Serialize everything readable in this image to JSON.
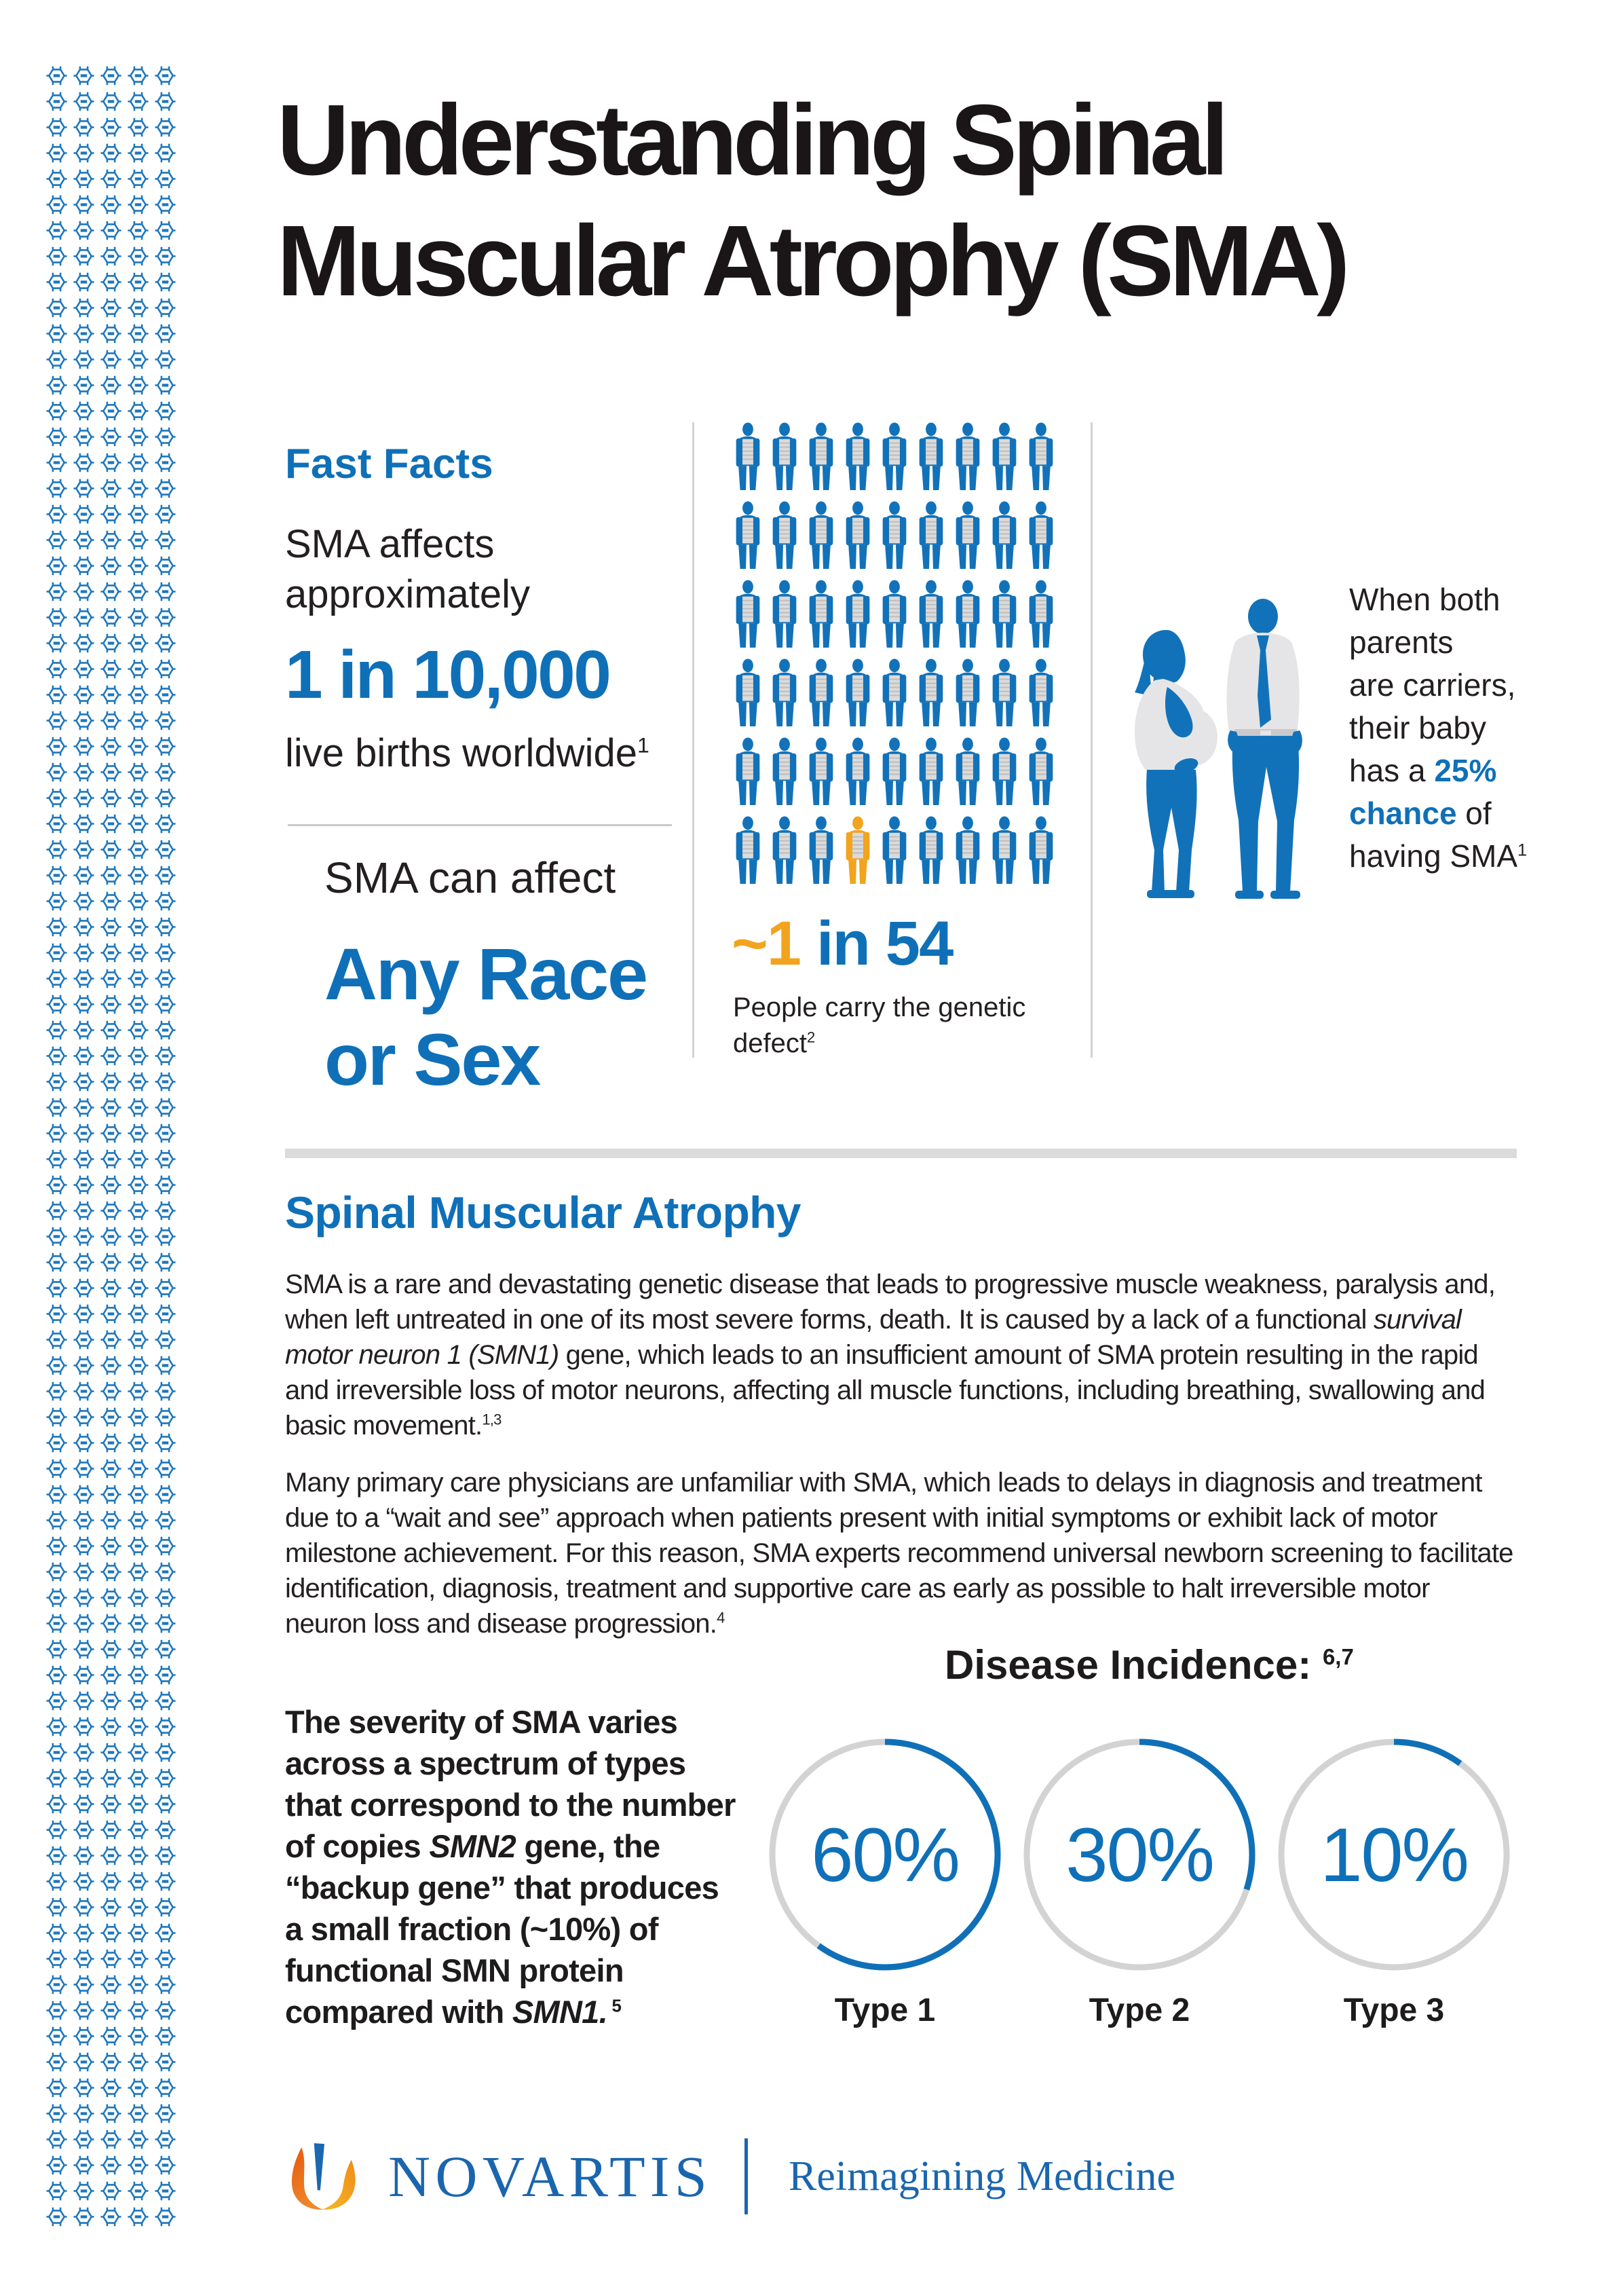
{
  "colors": {
    "blue": "#0F70B8",
    "icon_blue": "#1272B9",
    "orange": "#F2A41E",
    "dark": "#231F20",
    "ring_gray": "#D3D3D3",
    "rule_gray": "#DBDBDB",
    "novartis_blue": "#1A66AE"
  },
  "decor": {
    "hex_pattern": {
      "cols": 5,
      "rows": 84,
      "icon": "molecule-hexagon-icon"
    }
  },
  "title": {
    "line1": "Understanding Spinal",
    "line2": "Muscular Atrophy (SMA)"
  },
  "fast_facts": {
    "heading": "Fast Facts",
    "line1": "SMA affects",
    "line2": "approximately",
    "stat": "1 in 10,000",
    "tail": [
      {
        "t": "live births worldwide"
      },
      {
        "t": "1",
        "sup": true
      }
    ]
  },
  "race": {
    "intro": "SMA can affect",
    "line1": "Any Race",
    "line2": "or Sex"
  },
  "carrier": {
    "stat": [
      {
        "t": "~1",
        "c": "orange"
      },
      {
        "t": " in 54",
        "c": "blue"
      }
    ],
    "caption": [
      {
        "t": "People carry the genetic"
      },
      {
        "br": true
      },
      {
        "t": "defect"
      },
      {
        "t": "2",
        "sup": true
      }
    ]
  },
  "parents": {
    "note": [
      {
        "t": "When both"
      },
      {
        "br": true
      },
      {
        "t": "parents"
      },
      {
        "br": true
      },
      {
        "t": "are carriers,"
      },
      {
        "br": true
      },
      {
        "t": "their baby"
      },
      {
        "br": true
      },
      {
        "t": "has a "
      },
      {
        "t": "25%",
        "b": true,
        "c": "blue"
      },
      {
        "br": true
      },
      {
        "t": "chance",
        "b": true,
        "c": "blue"
      },
      {
        "t": " of"
      },
      {
        "br": true
      },
      {
        "t": "having SMA"
      },
      {
        "t": "1",
        "sup": true
      }
    ]
  },
  "about": {
    "heading": "Spinal Muscular Atrophy",
    "p1": [
      {
        "t": "SMA is a rare and devastating genetic disease that leads to progressive muscle weakness, paralysis and, when left untreated in one of its most severe forms, death. It is caused by a lack of a functional "
      },
      {
        "t": "survival motor neuron 1 (SMN1)",
        "i": true
      },
      {
        "t": " gene, which leads to an insufficient amount of SMA protein resulting in the rapid and irreversible loss of motor neurons, affecting all muscle functions, including breathing, swallowing and basic movement."
      },
      {
        "t": "1,3",
        "sup": true
      }
    ],
    "p2": [
      {
        "t": "Many primary care physicians are unfamiliar with SMA, which leads to delays in diagnosis and treatment due to a “wait and see” approach when patients present with initial symptoms or exhibit lack of motor milestone achievement. For this reason, SMA experts recommend universal newborn screening to facilitate identification, diagnosis, treatment and supportive care as early as possible to halt irreversible motor neuron loss and disease progression."
      },
      {
        "t": "4",
        "sup": true
      }
    ]
  },
  "severity": {
    "text": [
      {
        "t": "The severity of SMA varies across a spectrum of types that correspond to the number of copies "
      },
      {
        "t": "SMN2",
        "i": true
      },
      {
        "t": " gene, the “backup gene” that produces a small fraction (~10%) of functional SMN protein compared with "
      },
      {
        "t": "SMN1.",
        "i": true
      },
      {
        "t": " 5",
        "sup": true
      }
    ]
  },
  "incidence": {
    "heading": "Disease Incidence:",
    "heading_sup": "6,7"
  },
  "footer": {
    "brand": "NOVARTIS",
    "tagline": "Reimagining Medicine"
  },
  "chart_data": [
    {
      "type": "pie",
      "title": "Disease Incidence",
      "title_refs": "6,7",
      "categories": [
        "Type 1",
        "Type 2",
        "Type 3"
      ],
      "values": [
        60,
        30,
        10
      ],
      "unit": "%",
      "layout": "three separate donut rings, blue arc share on gray ring, percent centered, label below"
    },
    {
      "type": "pictogram",
      "title": "~1 in 54",
      "caption": "People carry the genetic defect",
      "caption_ref": "2",
      "total_icons": 54,
      "highlighted_icons": 1,
      "highlight_index": 48,
      "grid_rows": 6,
      "grid_cols": 9
    }
  ]
}
